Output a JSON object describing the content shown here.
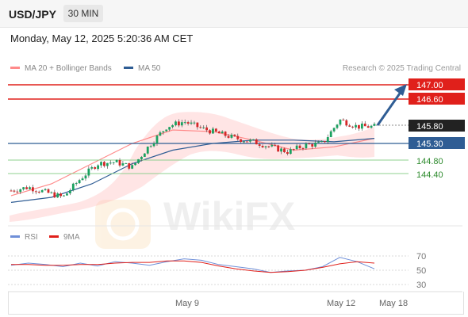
{
  "header": {
    "symbol": "USD/JPY",
    "timeframe": "30 MIN"
  },
  "timestamp": "Monday, May 12, 2025 5:20:36 AM CET",
  "legend": {
    "ma20_label": "MA 20 + Bollinger Bands",
    "ma20_color": "#ff8a8a",
    "ma50_label": "MA 50",
    "ma50_color": "#2f5d94"
  },
  "credit": "Research © 2025 Trading Central",
  "watermark": "WikiFX",
  "price_levels": [
    {
      "value": "147.00",
      "color": "#e0201b",
      "type": "resistance"
    },
    {
      "value": "146.60",
      "color": "#e0201b",
      "type": "resistance"
    },
    {
      "value": "145.80",
      "color": "#222222",
      "type": "current"
    },
    {
      "value": "145.30",
      "color": "#2f5d94",
      "type": "pivot"
    },
    {
      "value": "144.80",
      "color": "#3a9a3a",
      "type": "support"
    },
    {
      "value": "144.40",
      "color": "#3a9a3a",
      "type": "support"
    }
  ],
  "rsi_legend": {
    "rsi_label": "RSI",
    "rsi_color": "#6f8fd8",
    "ma_label": "9MA",
    "ma_color": "#e0201b"
  },
  "rsi_axis": [
    "70",
    "50",
    "30"
  ],
  "x_axis": [
    "May 9",
    "May 12",
    "May 18"
  ],
  "chart_data": [
    {
      "type": "candlestick",
      "title": "USD/JPY 30 MIN",
      "y_ticks": [
        147.0,
        146.6,
        145.8,
        145.3,
        144.8,
        144.4
      ],
      "x_ticks": [
        "May 9",
        "May 12",
        "May 18"
      ],
      "series": [
        {
          "name": "MA 20 + Bollinger Bands",
          "values": [
            143.75,
            144.1,
            144.7,
            145.3,
            145.7,
            145.65,
            145.4,
            145.1,
            145.2,
            145.45
          ]
        },
        {
          "name": "MA 50",
          "values": [
            143.55,
            143.7,
            144.1,
            144.7,
            145.1,
            145.3,
            145.4,
            145.4,
            145.35,
            145.45
          ]
        }
      ],
      "close_path": [
        143.9,
        144.0,
        143.85,
        143.7,
        144.25,
        144.7,
        144.75,
        144.6,
        145.25,
        145.8,
        145.95,
        145.75,
        145.6,
        145.45,
        145.35,
        145.2,
        145.05,
        145.25,
        145.3,
        146.0,
        145.8,
        145.8
      ],
      "forecast": {
        "from": 145.8,
        "to": 147.0
      }
    },
    {
      "type": "line",
      "title": "RSI",
      "ylim": [
        30,
        70
      ],
      "series": [
        {
          "name": "RSI",
          "values": [
            57,
            60,
            58,
            55,
            60,
            56,
            62,
            60,
            57,
            62,
            66,
            64,
            58,
            55,
            52,
            47,
            49,
            50,
            55,
            68,
            62,
            52
          ]
        },
        {
          "name": "9MA",
          "values": [
            58,
            58,
            57,
            57,
            58,
            58,
            60,
            61,
            61,
            63,
            63,
            61,
            56,
            52,
            49,
            47,
            48,
            50,
            54,
            59,
            62,
            60
          ]
        }
      ]
    }
  ]
}
